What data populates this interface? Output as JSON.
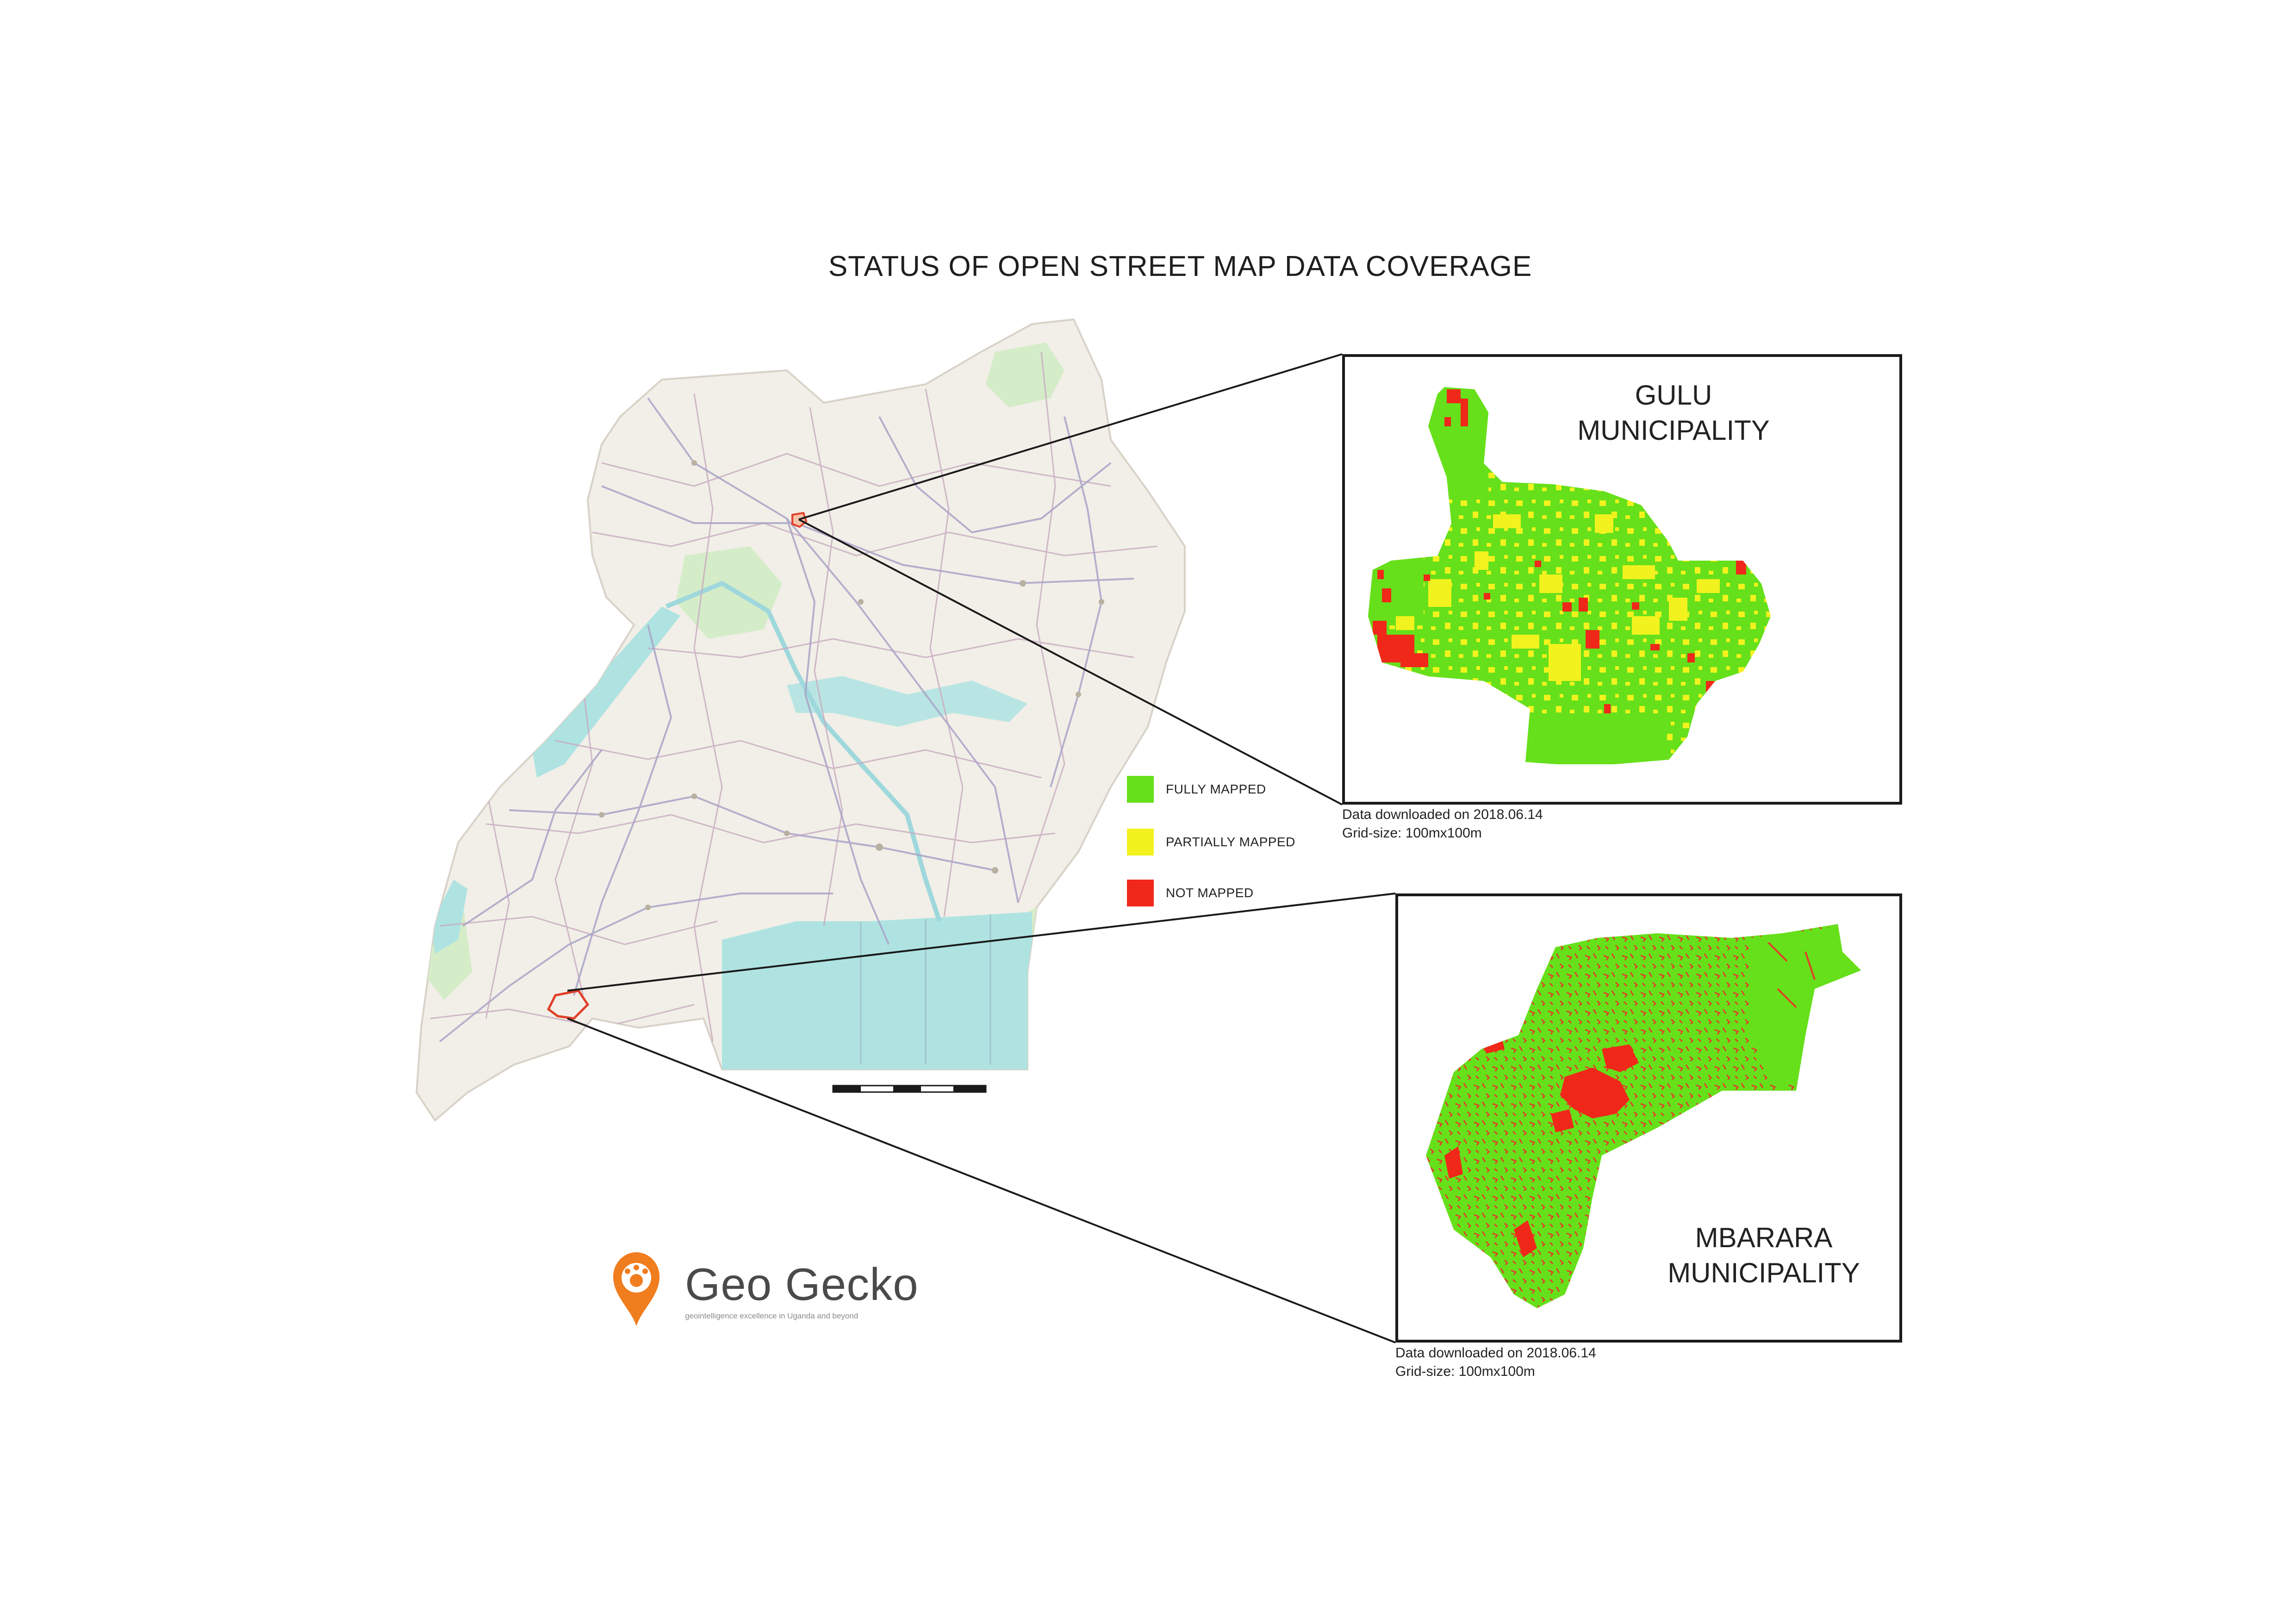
{
  "title": "STATUS OF OPEN STREET MAP DATA COVERAGE",
  "legend": {
    "items": [
      {
        "label": "FULLY MAPPED",
        "color": "#66e01a"
      },
      {
        "label": "PARTIALLY MAPPED",
        "color": "#f2f21e"
      },
      {
        "label": "NOT MAPPED",
        "color": "#f0281a"
      }
    ]
  },
  "insets": {
    "gulu": {
      "title_line1": "GULU",
      "title_line2": "MUNICIPALITY",
      "note_line1": "Data downloaded on 2018.06.14",
      "note_line2": "Grid-size: 100mx100m"
    },
    "mbarara": {
      "title_line1": "MBARARA",
      "title_line2": "MUNICIPALITY",
      "note_line1": "Data downloaded on 2018.06.14",
      "note_line2": "Grid-size: 100mx100m"
    }
  },
  "logo": {
    "name": "Geo Gecko",
    "tagline": "geointelligence excellence in Uganda and beyond",
    "color": "#f07d1e"
  },
  "colors": {
    "land": "#f1efe7",
    "water": "#aee3e2",
    "park": "#d5ecc8",
    "road": "#a9a4c8",
    "boundary": "#c9a8c0",
    "highlight": "#e0402a"
  }
}
